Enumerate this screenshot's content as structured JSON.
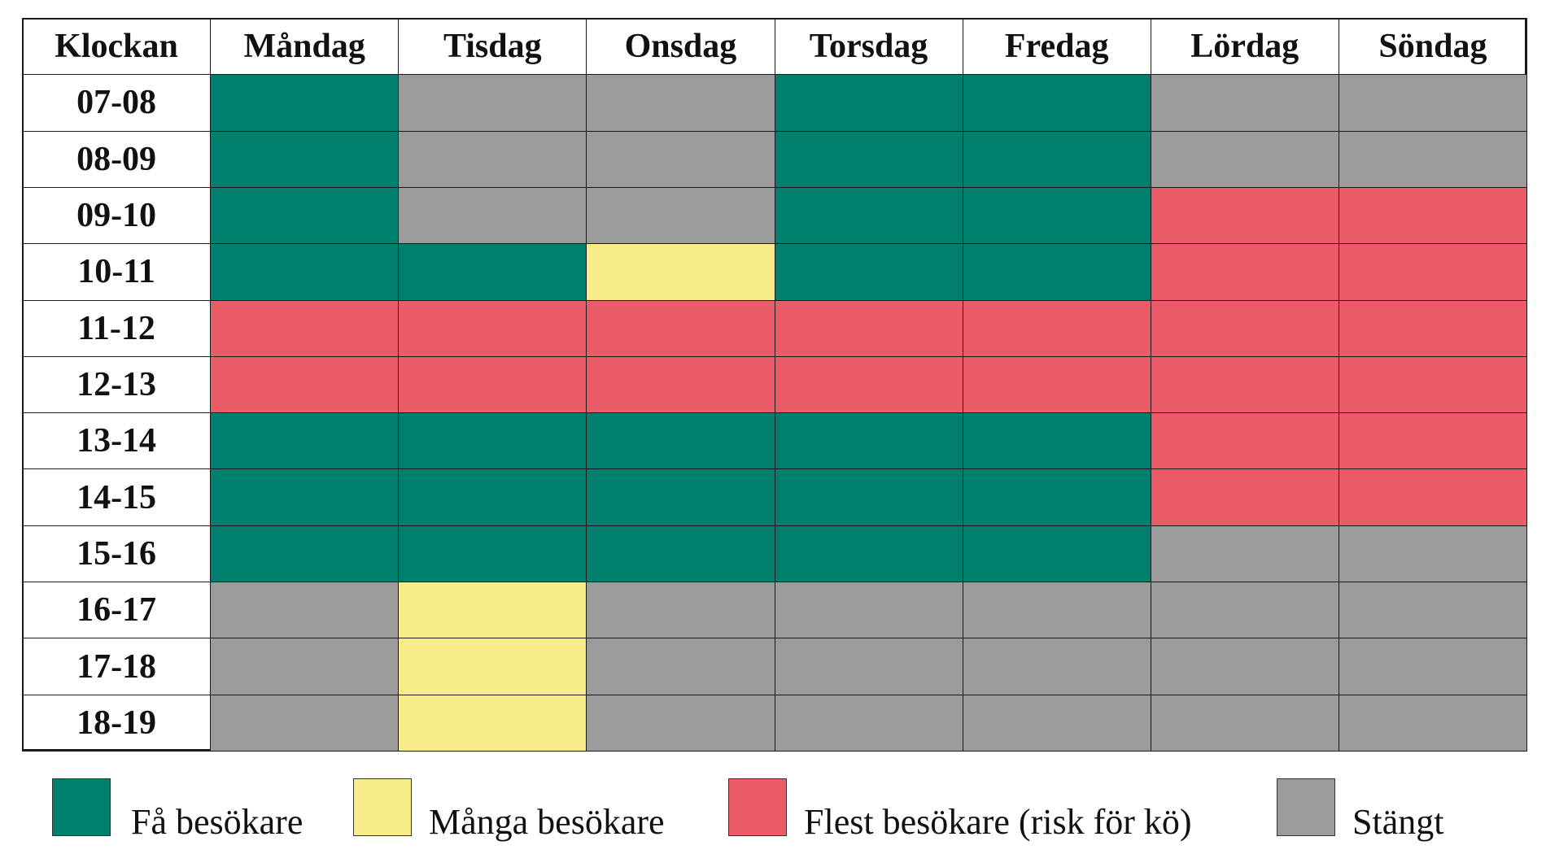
{
  "table": {
    "columns": [
      "Klockan",
      "Måndag",
      "Tisdag",
      "Onsdag",
      "Torsdag",
      "Fredag",
      "Lördag",
      "Söndag"
    ],
    "rows": [
      {
        "time": "07-08",
        "cells": [
          "#007f6e",
          "#9b9b9b",
          "#9b9b9b",
          "#007f6e",
          "#007f6e",
          "#9b9b9b",
          "#9b9b9b"
        ]
      },
      {
        "time": "08-09",
        "cells": [
          "#007f6e",
          "#9b9b9b",
          "#9b9b9b",
          "#007f6e",
          "#007f6e",
          "#9b9b9b",
          "#9b9b9b"
        ]
      },
      {
        "time": "09-10",
        "cells": [
          "#007f6e",
          "#9b9b9b",
          "#9b9b9b",
          "#007f6e",
          "#007f6e",
          "#e95c68",
          "#e95c68"
        ]
      },
      {
        "time": "10-11",
        "cells": [
          "#007f6e",
          "#007f6e",
          "#f8ec88",
          "#007f6e",
          "#007f6e",
          "#e95c68",
          "#e95c68"
        ]
      },
      {
        "time": "11-12",
        "cells": [
          "#e95c68",
          "#e95c68",
          "#e95c68",
          "#e95c68",
          "#e95c68",
          "#e95c68",
          "#e95c68"
        ]
      },
      {
        "time": "12-13",
        "cells": [
          "#e95c68",
          "#e95c68",
          "#e95c68",
          "#e95c68",
          "#e95c68",
          "#e95c68",
          "#e95c68"
        ]
      },
      {
        "time": "13-14",
        "cells": [
          "#007f6e",
          "#007f6e",
          "#007f6e",
          "#007f6e",
          "#007f6e",
          "#e95c68",
          "#e95c68"
        ]
      },
      {
        "time": "14-15",
        "cells": [
          "#007f6e",
          "#007f6e",
          "#007f6e",
          "#007f6e",
          "#007f6e",
          "#e95c68",
          "#e95c68"
        ]
      },
      {
        "time": "15-16",
        "cells": [
          "#007f6e",
          "#007f6e",
          "#007f6e",
          "#007f6e",
          "#007f6e",
          "#9b9b9b",
          "#9b9b9b"
        ]
      },
      {
        "time": "16-17",
        "cells": [
          "#9b9b9b",
          "#f8ec88",
          "#9b9b9b",
          "#9b9b9b",
          "#9b9b9b",
          "#9b9b9b",
          "#9b9b9b"
        ]
      },
      {
        "time": "17-18",
        "cells": [
          "#9b9b9b",
          "#f8ec88",
          "#9b9b9b",
          "#9b9b9b",
          "#9b9b9b",
          "#9b9b9b",
          "#9b9b9b"
        ]
      },
      {
        "time": "18-19",
        "cells": [
          "#9b9b9b",
          "#f8ec88",
          "#9b9b9b",
          "#9b9b9b",
          "#9b9b9b",
          "#9b9b9b",
          "#9b9b9b"
        ]
      }
    ]
  },
  "legend": [
    {
      "label": "Få besökare",
      "color": "#007f6e"
    },
    {
      "label": "Många besökare",
      "color": "#f8ec88"
    },
    {
      "label": "Flest besökare (risk för kö)",
      "color": "#e95c68"
    },
    {
      "label": "Stängt",
      "color": "#9b9b9b"
    }
  ]
}
